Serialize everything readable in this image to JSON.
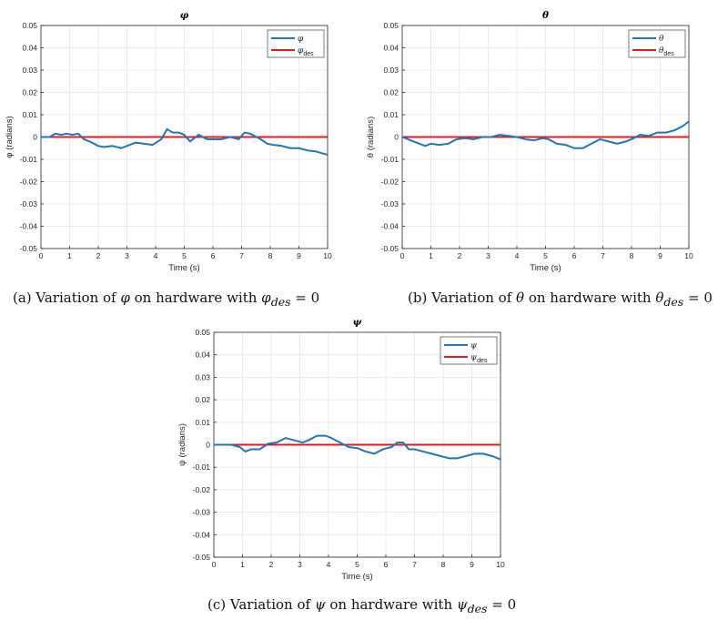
{
  "chart_data": [
    {
      "type": "line",
      "title": "φ",
      "xlabel": "Time (s)",
      "ylabel": "φ (radians)",
      "xlim": [
        0,
        10
      ],
      "ylim": [
        -0.05,
        0.05
      ],
      "x_ticks": [
        0,
        1,
        2,
        3,
        4,
        5,
        6,
        7,
        8,
        9,
        10
      ],
      "y_ticks": [
        0.05,
        0.04,
        0.03,
        0.02,
        0.01,
        0,
        -0.01,
        -0.02,
        -0.03,
        -0.04,
        -0.05
      ],
      "x_tick_labels": [
        "0",
        "1",
        "2",
        "3",
        "4",
        "5",
        "6",
        "7",
        "8",
        "9",
        "10"
      ],
      "y_tick_labels": [
        "0.05",
        "0.04",
        "0.03",
        "0.02",
        "0.01",
        "0",
        "-0.01",
        "-0.02",
        "-0.03",
        "-0.04",
        "-0.05"
      ],
      "grid": true,
      "legend_position": "top-right",
      "series": [
        {
          "name": "φ",
          "color": "#1f77b4",
          "x": [
            0,
            0.3,
            0.5,
            0.7,
            0.9,
            1.1,
            1.3,
            1.5,
            1.7,
            2.0,
            2.2,
            2.5,
            2.8,
            3.0,
            3.3,
            3.6,
            3.9,
            4.2,
            4.4,
            4.6,
            4.8,
            5.0,
            5.2,
            5.5,
            5.8,
            6.0,
            6.3,
            6.6,
            6.9,
            7.1,
            7.3,
            7.6,
            7.9,
            8.1,
            8.4,
            8.7,
            9.0,
            9.3,
            9.6,
            10.0
          ],
          "y": [
            0,
            0,
            0.0015,
            0.001,
            0.0015,
            0.001,
            0.0015,
            -0.001,
            -0.002,
            -0.004,
            -0.0045,
            -0.004,
            -0.005,
            -0.004,
            -0.0025,
            -0.003,
            -0.0035,
            -0.001,
            0.0035,
            0.002,
            0.002,
            0.001,
            -0.002,
            0.001,
            -0.001,
            -0.001,
            -0.001,
            0,
            -0.001,
            0.002,
            0.0015,
            -0.0005,
            -0.003,
            -0.0035,
            -0.004,
            -0.005,
            -0.005,
            -0.006,
            -0.0065,
            -0.008
          ]
        },
        {
          "name": "φ_des",
          "color": "#e41a1c",
          "x": [
            0,
            10
          ],
          "y": [
            0,
            0
          ]
        }
      ]
    },
    {
      "type": "line",
      "title": "θ",
      "xlabel": "Time (s)",
      "ylabel": "θ (radians)",
      "xlim": [
        0,
        10
      ],
      "ylim": [
        -0.05,
        0.05
      ],
      "x_ticks": [
        0,
        1,
        2,
        3,
        4,
        5,
        6,
        7,
        8,
        9,
        10
      ],
      "y_ticks": [
        0.05,
        0.04,
        0.03,
        0.02,
        0.01,
        0,
        -0.01,
        -0.02,
        -0.03,
        -0.04,
        -0.05
      ],
      "x_tick_labels": [
        "0",
        "1",
        "2",
        "3",
        "4",
        "5",
        "6",
        "7",
        "8",
        "9",
        "10"
      ],
      "y_tick_labels": [
        "0.05",
        "0.04",
        "0.03",
        "0.02",
        "0.01",
        "0",
        "-0.01",
        "-0.02",
        "-0.03",
        "-0.04",
        "-0.05"
      ],
      "grid": true,
      "legend_position": "top-right",
      "series": [
        {
          "name": "θ",
          "color": "#1f77b4",
          "x": [
            0,
            0.2,
            0.4,
            0.6,
            0.8,
            1.0,
            1.3,
            1.6,
            1.9,
            2.2,
            2.5,
            2.8,
            3.1,
            3.4,
            3.7,
            4.0,
            4.3,
            4.6,
            4.9,
            5.1,
            5.4,
            5.7,
            6.0,
            6.3,
            6.6,
            6.9,
            7.2,
            7.5,
            7.8,
            8.0,
            8.3,
            8.6,
            8.9,
            9.2,
            9.5,
            9.8,
            10.0
          ],
          "y": [
            0,
            -0.001,
            -0.002,
            -0.003,
            -0.004,
            -0.003,
            -0.0035,
            -0.003,
            -0.001,
            -0.0005,
            -0.001,
            0,
            0,
            0.001,
            0.0005,
            0,
            -0.001,
            -0.0015,
            -0.0005,
            -0.001,
            -0.003,
            -0.0035,
            -0.005,
            -0.005,
            -0.003,
            -0.001,
            -0.002,
            -0.003,
            -0.002,
            -0.001,
            0.001,
            0.0005,
            0.002,
            0.002,
            0.003,
            0.005,
            0.007
          ]
        },
        {
          "name": "θ_des",
          "color": "#e41a1c",
          "x": [
            0,
            10
          ],
          "y": [
            0,
            0
          ]
        }
      ]
    },
    {
      "type": "line",
      "title": "ψ",
      "xlabel": "Time (s)",
      "ylabel": "ψ (radians)",
      "xlim": [
        0,
        10
      ],
      "ylim": [
        -0.05,
        0.05
      ],
      "x_ticks": [
        0,
        1,
        2,
        3,
        4,
        5,
        6,
        7,
        8,
        9,
        10
      ],
      "y_ticks": [
        0.05,
        0.04,
        0.03,
        0.02,
        0.01,
        0,
        -0.01,
        -0.02,
        -0.03,
        -0.04,
        -0.05
      ],
      "x_tick_labels": [
        "0",
        "1",
        "2",
        "3",
        "4",
        "5",
        "6",
        "7",
        "8",
        "9",
        "10"
      ],
      "y_tick_labels": [
        "0.05",
        "0.04",
        "0.03",
        "0.02",
        "0.01",
        "0",
        "-0.01",
        "-0.02",
        "-0.03",
        "-0.04",
        "-0.05"
      ],
      "grid": true,
      "legend_position": "top-right",
      "series": [
        {
          "name": "ψ",
          "color": "#1f77b4",
          "x": [
            0,
            0.3,
            0.6,
            0.9,
            1.1,
            1.3,
            1.6,
            1.9,
            2.2,
            2.5,
            2.8,
            3.1,
            3.3,
            3.6,
            3.9,
            4.1,
            4.4,
            4.7,
            5.0,
            5.3,
            5.6,
            5.9,
            6.2,
            6.4,
            6.6,
            6.8,
            7.0,
            7.3,
            7.6,
            7.9,
            8.2,
            8.5,
            8.8,
            9.1,
            9.4,
            9.7,
            10.0
          ],
          "y": [
            0,
            0,
            0,
            -0.001,
            -0.003,
            -0.002,
            -0.002,
            0.0005,
            0.001,
            0.003,
            0.002,
            0.001,
            0.002,
            0.004,
            0.004,
            0.003,
            0.001,
            -0.001,
            -0.0015,
            -0.003,
            -0.004,
            -0.002,
            -0.001,
            0.001,
            0.001,
            -0.002,
            -0.002,
            -0.003,
            -0.004,
            -0.005,
            -0.006,
            -0.006,
            -0.005,
            -0.004,
            -0.004,
            -0.005,
            -0.0065
          ]
        },
        {
          "name": "ψ_des",
          "color": "#e41a1c",
          "x": [
            0,
            10
          ],
          "y": [
            0,
            0
          ]
        }
      ]
    }
  ],
  "captions": {
    "a": {
      "prefix": "(a) Variation of ",
      "sym": "φ",
      "middle": " on hardware with ",
      "sym2": "φ",
      "sub": "des",
      "suffix": " = 0"
    },
    "b": {
      "prefix": "(b) Variation of ",
      "sym": "θ",
      "middle": " on hardware with ",
      "sym2": "θ",
      "sub": "des",
      "suffix": " = 0"
    },
    "c": {
      "prefix": "(c) Variation of ",
      "sym": "ψ",
      "middle": " on hardware with ",
      "sym2": "ψ",
      "sub": "des",
      "suffix": " = 0"
    }
  }
}
